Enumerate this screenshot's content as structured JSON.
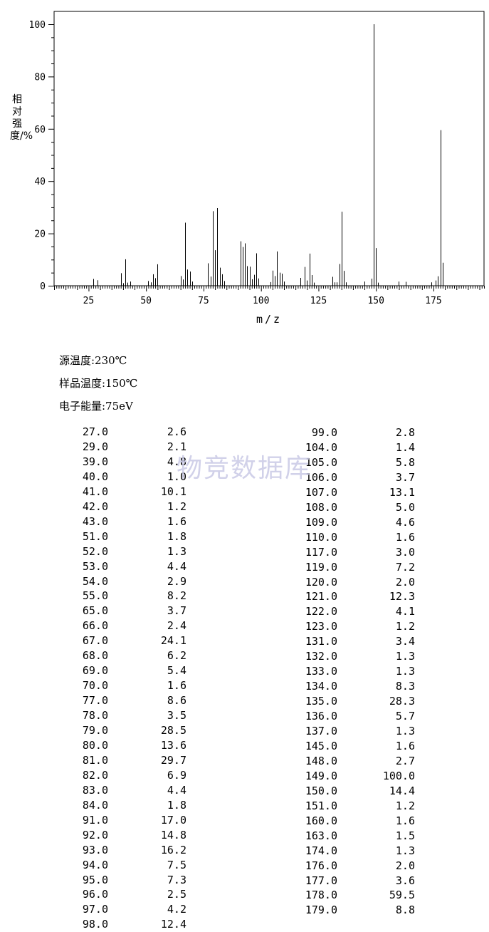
{
  "chart_data": {
    "type": "bar",
    "xlabel": "m/z",
    "ylabel": "相对强度/%",
    "xlim": [
      10,
      197
    ],
    "ylim": [
      0,
      100
    ],
    "xticks": [
      25,
      50,
      75,
      100,
      125,
      150,
      175
    ],
    "yticks": [
      0,
      20,
      40,
      60,
      80,
      100
    ],
    "points": [
      {
        "mz": 27,
        "i": 2.6
      },
      {
        "mz": 29,
        "i": 2.1
      },
      {
        "mz": 39,
        "i": 4.8
      },
      {
        "mz": 40,
        "i": 1.0
      },
      {
        "mz": 41,
        "i": 10.1
      },
      {
        "mz": 42,
        "i": 1.2
      },
      {
        "mz": 43,
        "i": 1.6
      },
      {
        "mz": 51,
        "i": 1.8
      },
      {
        "mz": 52,
        "i": 1.3
      },
      {
        "mz": 53,
        "i": 4.4
      },
      {
        "mz": 54,
        "i": 2.9
      },
      {
        "mz": 55,
        "i": 8.2
      },
      {
        "mz": 65,
        "i": 3.7
      },
      {
        "mz": 66,
        "i": 2.4
      },
      {
        "mz": 67,
        "i": 24.1
      },
      {
        "mz": 68,
        "i": 6.2
      },
      {
        "mz": 69,
        "i": 5.4
      },
      {
        "mz": 70,
        "i": 1.6
      },
      {
        "mz": 77,
        "i": 8.6
      },
      {
        "mz": 78,
        "i": 3.5
      },
      {
        "mz": 79,
        "i": 28.5
      },
      {
        "mz": 80,
        "i": 13.6
      },
      {
        "mz": 81,
        "i": 29.7
      },
      {
        "mz": 82,
        "i": 6.9
      },
      {
        "mz": 83,
        "i": 4.4
      },
      {
        "mz": 84,
        "i": 1.8
      },
      {
        "mz": 91,
        "i": 17.0
      },
      {
        "mz": 92,
        "i": 14.8
      },
      {
        "mz": 93,
        "i": 16.2
      },
      {
        "mz": 94,
        "i": 7.5
      },
      {
        "mz": 95,
        "i": 7.3
      },
      {
        "mz": 96,
        "i": 2.5
      },
      {
        "mz": 97,
        "i": 4.2
      },
      {
        "mz": 98,
        "i": 12.4
      },
      {
        "mz": 99,
        "i": 2.8
      },
      {
        "mz": 104,
        "i": 1.4
      },
      {
        "mz": 105,
        "i": 5.8
      },
      {
        "mz": 106,
        "i": 3.7
      },
      {
        "mz": 107,
        "i": 13.1
      },
      {
        "mz": 108,
        "i": 5.0
      },
      {
        "mz": 109,
        "i": 4.6
      },
      {
        "mz": 110,
        "i": 1.6
      },
      {
        "mz": 117,
        "i": 3.0
      },
      {
        "mz": 119,
        "i": 7.2
      },
      {
        "mz": 120,
        "i": 2.0
      },
      {
        "mz": 121,
        "i": 12.3
      },
      {
        "mz": 122,
        "i": 4.1
      },
      {
        "mz": 123,
        "i": 1.2
      },
      {
        "mz": 131,
        "i": 3.4
      },
      {
        "mz": 132,
        "i": 1.3
      },
      {
        "mz": 133,
        "i": 1.3
      },
      {
        "mz": 134,
        "i": 8.3
      },
      {
        "mz": 135,
        "i": 28.3
      },
      {
        "mz": 136,
        "i": 5.7
      },
      {
        "mz": 137,
        "i": 1.3
      },
      {
        "mz": 145,
        "i": 1.6
      },
      {
        "mz": 148,
        "i": 2.7
      },
      {
        "mz": 149,
        "i": 100.0
      },
      {
        "mz": 150,
        "i": 14.4
      },
      {
        "mz": 151,
        "i": 1.2
      },
      {
        "mz": 160,
        "i": 1.6
      },
      {
        "mz": 163,
        "i": 1.5
      },
      {
        "mz": 174,
        "i": 1.3
      },
      {
        "mz": 176,
        "i": 2.0
      },
      {
        "mz": 177,
        "i": 3.6
      },
      {
        "mz": 178,
        "i": 59.5
      },
      {
        "mz": 179,
        "i": 8.8
      }
    ]
  },
  "conditions": {
    "source_temp": "源温度:230℃",
    "sample_temp": "样品温度:150℃",
    "electron_energy": "电子能量:75eV"
  },
  "watermark": "物竞数据库",
  "table": {
    "left": [
      [
        "27.0",
        "2.6"
      ],
      [
        "29.0",
        "2.1"
      ],
      [
        "39.0",
        "4.8"
      ],
      [
        "40.0",
        "1.0"
      ],
      [
        "41.0",
        "10.1"
      ],
      [
        "42.0",
        "1.2"
      ],
      [
        "43.0",
        "1.6"
      ],
      [
        "51.0",
        "1.8"
      ],
      [
        "52.0",
        "1.3"
      ],
      [
        "53.0",
        "4.4"
      ],
      [
        "54.0",
        "2.9"
      ],
      [
        "55.0",
        "8.2"
      ],
      [
        "65.0",
        "3.7"
      ],
      [
        "66.0",
        "2.4"
      ],
      [
        "67.0",
        "24.1"
      ],
      [
        "68.0",
        "6.2"
      ],
      [
        "69.0",
        "5.4"
      ],
      [
        "70.0",
        "1.6"
      ],
      [
        "77.0",
        "8.6"
      ],
      [
        "78.0",
        "3.5"
      ],
      [
        "79.0",
        "28.5"
      ],
      [
        "80.0",
        "13.6"
      ],
      [
        "81.0",
        "29.7"
      ],
      [
        "82.0",
        "6.9"
      ],
      [
        "83.0",
        "4.4"
      ],
      [
        "84.0",
        "1.8"
      ],
      [
        "91.0",
        "17.0"
      ],
      [
        "92.0",
        "14.8"
      ],
      [
        "93.0",
        "16.2"
      ],
      [
        "94.0",
        "7.5"
      ],
      [
        "95.0",
        "7.3"
      ],
      [
        "96.0",
        "2.5"
      ],
      [
        "97.0",
        "4.2"
      ],
      [
        "98.0",
        "12.4"
      ]
    ],
    "right": [
      [
        "99.0",
        "2.8"
      ],
      [
        "104.0",
        "1.4"
      ],
      [
        "105.0",
        "5.8"
      ],
      [
        "106.0",
        "3.7"
      ],
      [
        "107.0",
        "13.1"
      ],
      [
        "108.0",
        "5.0"
      ],
      [
        "109.0",
        "4.6"
      ],
      [
        "110.0",
        "1.6"
      ],
      [
        "117.0",
        "3.0"
      ],
      [
        "119.0",
        "7.2"
      ],
      [
        "120.0",
        "2.0"
      ],
      [
        "121.0",
        "12.3"
      ],
      [
        "122.0",
        "4.1"
      ],
      [
        "123.0",
        "1.2"
      ],
      [
        "131.0",
        "3.4"
      ],
      [
        "132.0",
        "1.3"
      ],
      [
        "133.0",
        "1.3"
      ],
      [
        "134.0",
        "8.3"
      ],
      [
        "135.0",
        "28.3"
      ],
      [
        "136.0",
        "5.7"
      ],
      [
        "137.0",
        "1.3"
      ],
      [
        "145.0",
        "1.6"
      ],
      [
        "148.0",
        "2.7"
      ],
      [
        "149.0",
        "100.0"
      ],
      [
        "150.0",
        "14.4"
      ],
      [
        "151.0",
        "1.2"
      ],
      [
        "160.0",
        "1.6"
      ],
      [
        "163.0",
        "1.5"
      ],
      [
        "174.0",
        "1.3"
      ],
      [
        "176.0",
        "2.0"
      ],
      [
        "177.0",
        "3.6"
      ],
      [
        "178.0",
        "59.5"
      ],
      [
        "179.0",
        "8.8"
      ]
    ]
  }
}
